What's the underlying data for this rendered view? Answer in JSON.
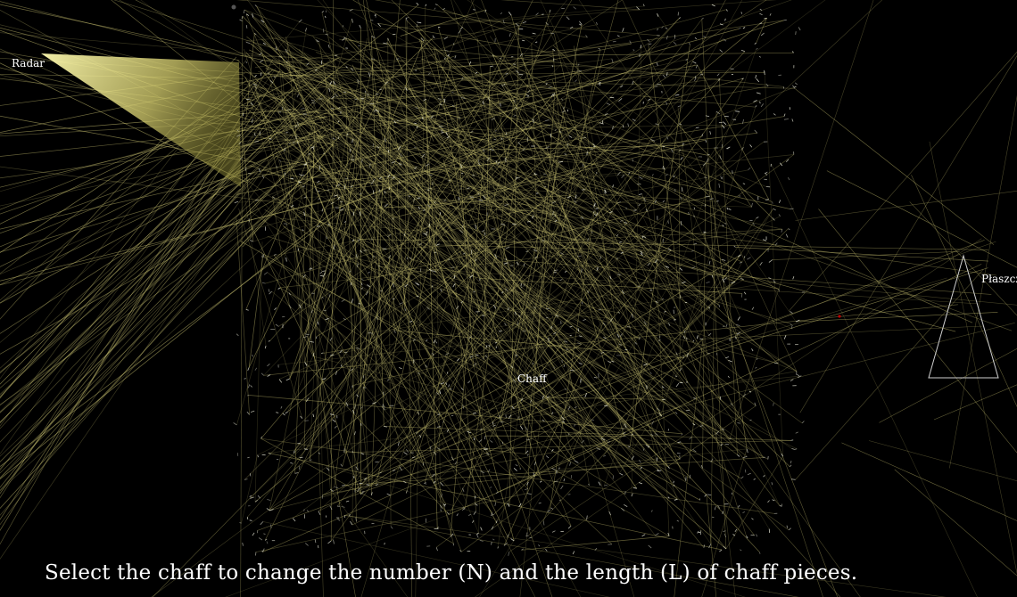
{
  "labels": {
    "radar": "Radar",
    "chaff": "Chaff",
    "plane": "Płaszczak"
  },
  "instruction": "Select the chaff to change the number (N) and the length (L) of chaff pieces.",
  "colors": {
    "background": "#000000",
    "beam": "#f5f0a0",
    "rays": "#c8c070",
    "chaff_pieces": "#d8d8c8",
    "plane_outline": "#d0d0d0",
    "target_dot": "#c00000",
    "text": "#ffffff"
  }
}
